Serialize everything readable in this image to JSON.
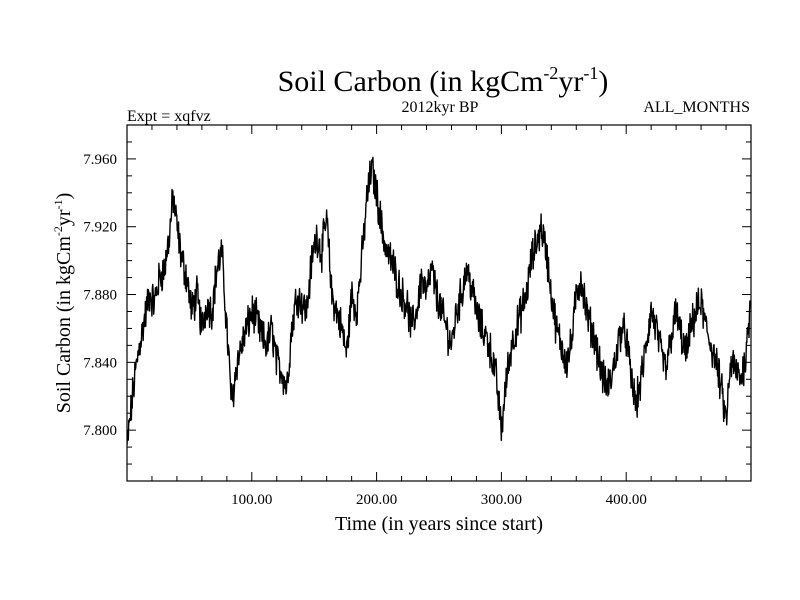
{
  "chart_data": {
    "type": "line",
    "title_main": "Soil Carbon (in kgCm",
    "title_sup1": "-2",
    "title_mid": "yr",
    "title_sup2": "-1",
    "title_end": ")",
    "expt_label": "Expt = xqfvz",
    "period_label": "2012kyr BP",
    "months_label": "ALL_MONTHS",
    "xlabel": "Time (in years since start)",
    "ylabel_main": "Soil Carbon (in kgCm",
    "ylabel_sup1": "-2",
    "ylabel_mid": "yr",
    "ylabel_sup2": "-1",
    "ylabel_end": ")",
    "xlim": [
      0,
      500
    ],
    "ylim": [
      7.77,
      7.98
    ],
    "x_ticks": [
      100,
      200,
      300,
      400
    ],
    "x_tick_labels": [
      "100.00",
      "200.00",
      "300.00",
      "400.00"
    ],
    "y_ticks": [
      7.8,
      7.84,
      7.88,
      7.92,
      7.96
    ],
    "y_tick_labels": [
      "7.800",
      "7.840",
      "7.880",
      "7.920",
      "7.960"
    ],
    "line_color": "#000000",
    "series": [
      {
        "name": "Soil Carbon",
        "x": [
          0,
          3,
          6,
          10,
          14,
          18,
          22,
          26,
          30,
          34,
          37,
          40,
          44,
          48,
          52,
          56,
          60,
          64,
          68,
          72,
          76,
          80,
          84,
          88,
          92,
          96,
          100,
          104,
          108,
          112,
          116,
          120,
          124,
          128,
          132,
          136,
          140,
          144,
          148,
          152,
          156,
          160,
          164,
          168,
          172,
          176,
          180,
          184,
          188,
          192,
          196,
          200,
          204,
          208,
          212,
          216,
          220,
          224,
          228,
          232,
          236,
          240,
          244,
          248,
          252,
          256,
          260,
          264,
          268,
          272,
          276,
          280,
          284,
          288,
          292,
          296,
          300,
          304,
          308,
          312,
          316,
          320,
          324,
          328,
          332,
          336,
          340,
          344,
          348,
          352,
          356,
          360,
          364,
          368,
          372,
          376,
          380,
          384,
          388,
          392,
          396,
          400,
          404,
          408,
          412,
          416,
          420,
          424,
          428,
          432,
          436,
          440,
          444,
          448,
          452,
          456,
          460,
          464,
          468,
          472,
          476,
          480,
          484,
          488,
          492,
          496,
          500
        ],
        "values": [
          7.79,
          7.81,
          7.83,
          7.85,
          7.865,
          7.88,
          7.875,
          7.89,
          7.895,
          7.915,
          7.938,
          7.92,
          7.9,
          7.89,
          7.87,
          7.88,
          7.86,
          7.875,
          7.87,
          7.895,
          7.905,
          7.86,
          7.815,
          7.84,
          7.85,
          7.86,
          7.87,
          7.865,
          7.855,
          7.85,
          7.86,
          7.84,
          7.835,
          7.825,
          7.86,
          7.88,
          7.875,
          7.87,
          7.9,
          7.915,
          7.905,
          7.925,
          7.88,
          7.87,
          7.86,
          7.845,
          7.88,
          7.87,
          7.9,
          7.935,
          7.955,
          7.94,
          7.92,
          7.905,
          7.9,
          7.89,
          7.88,
          7.875,
          7.86,
          7.87,
          7.89,
          7.88,
          7.895,
          7.88,
          7.87,
          7.86,
          7.85,
          7.87,
          7.88,
          7.895,
          7.885,
          7.87,
          7.86,
          7.855,
          7.845,
          7.83,
          7.8,
          7.83,
          7.85,
          7.86,
          7.87,
          7.88,
          7.9,
          7.91,
          7.92,
          7.905,
          7.88,
          7.86,
          7.85,
          7.84,
          7.85,
          7.88,
          7.89,
          7.87,
          7.86,
          7.85,
          7.835,
          7.825,
          7.83,
          7.845,
          7.86,
          7.855,
          7.83,
          7.815,
          7.83,
          7.85,
          7.87,
          7.86,
          7.845,
          7.835,
          7.855,
          7.87,
          7.855,
          7.845,
          7.86,
          7.87,
          7.875,
          7.86,
          7.85,
          7.84,
          7.825,
          7.805,
          7.84,
          7.835,
          7.83,
          7.845,
          7.88
        ]
      }
    ]
  }
}
